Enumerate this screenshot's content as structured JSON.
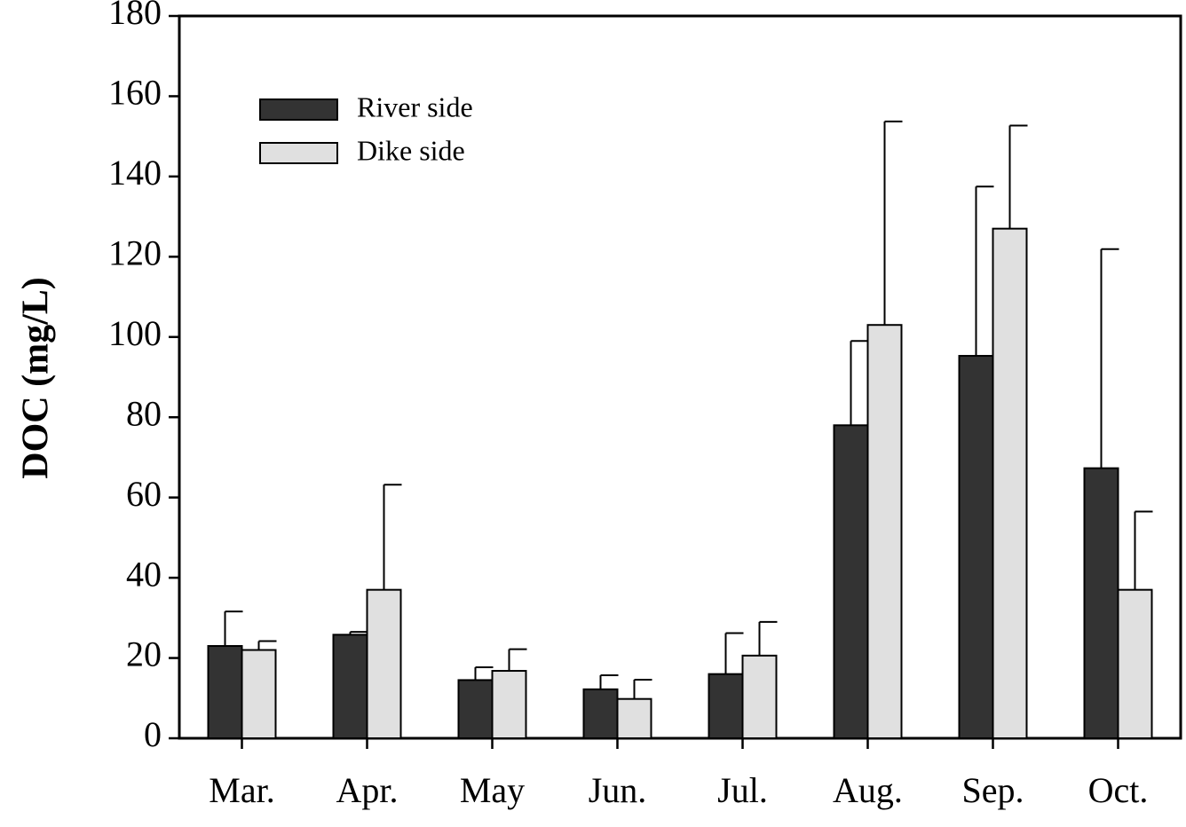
{
  "chart_data": {
    "type": "bar",
    "title": "",
    "xlabel": "",
    "ylabel": "DOC (mg/L)",
    "ylim": [
      0,
      180
    ],
    "yticks": [
      "0",
      "20",
      "40",
      "60",
      "80",
      "100",
      "120",
      "140",
      "160",
      "180"
    ],
    "categories": [
      "Mar.",
      "Apr.",
      "May",
      "Jun.",
      "Jul.",
      "Aug.",
      "Sep.",
      "Oct."
    ],
    "legend_position": "top-left",
    "grid": false,
    "series": [
      {
        "name": "River side",
        "color": "#333333",
        "values": [
          23,
          25.8,
          14.5,
          12.2,
          16,
          78,
          95.3,
          67.3
        ],
        "errors": [
          8.6,
          0.7,
          3.2,
          3.5,
          10.2,
          21,
          42.2,
          54.6
        ]
      },
      {
        "name": "Dike side",
        "color": "#e0e0e0",
        "values": [
          22,
          37,
          16.8,
          9.8,
          20.6,
          103,
          127,
          37
        ],
        "errors": [
          2.2,
          26.2,
          5.4,
          4.8,
          8.4,
          50.7,
          25.7,
          19.5
        ]
      }
    ]
  }
}
